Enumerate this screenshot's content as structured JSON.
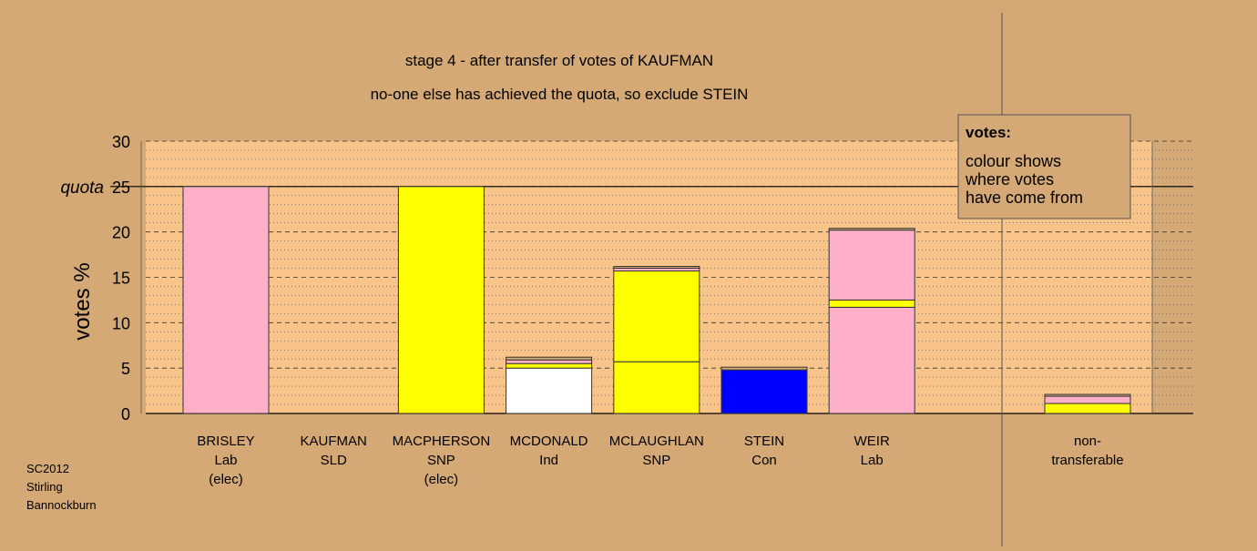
{
  "chart_data": {
    "type": "bar",
    "title": "stage 4 - after transfer of votes of KAUFMAN",
    "subtitle": "no-one else has achieved the quota, so exclude STEIN",
    "ylabel": "votes %",
    "ylim": [
      0,
      30
    ],
    "yticks": [
      "0",
      "5",
      "10",
      "15",
      "20",
      "25",
      "30"
    ],
    "quota_label": "quota",
    "quota_value": 25,
    "grid": true,
    "colors": {
      "background": "#d4a976",
      "plot_area": "#f9c48a",
      "Lab": "#ffb0c8",
      "SNP": "#ffff00",
      "Con": "#0000ff",
      "Ind": "#ffffff",
      "SLD": "#d4a976"
    },
    "categories": [
      {
        "lines": [
          "BRISLEY",
          "Lab",
          "(elec)"
        ],
        "segments": [
          {
            "party": "Lab",
            "value": 25.0
          }
        ]
      },
      {
        "lines": [
          "KAUFMAN",
          "SLD"
        ],
        "segments": []
      },
      {
        "lines": [
          "MACPHERSON",
          "SNP",
          "(elec)"
        ],
        "segments": [
          {
            "party": "SNP",
            "value": 25.0
          }
        ]
      },
      {
        "lines": [
          "MCDONALD",
          "Ind"
        ],
        "segments": [
          {
            "party": "Ind",
            "value": 5.0
          },
          {
            "party": "SNP",
            "value": 0.5
          },
          {
            "party": "Lab",
            "value": 0.4
          },
          {
            "party": "SLD",
            "value": 0.3
          }
        ]
      },
      {
        "lines": [
          "MCLAUGHLAN",
          "SNP"
        ],
        "segments": [
          {
            "party": "SNP",
            "value": 5.7
          },
          {
            "party": "SNP",
            "value": 10.0
          },
          {
            "party": "Lab",
            "value": 0.3
          },
          {
            "party": "SLD",
            "value": 0.2
          }
        ]
      },
      {
        "lines": [
          "STEIN",
          "Con"
        ],
        "segments": [
          {
            "party": "Con",
            "value": 4.8
          },
          {
            "party": "SLD",
            "value": 0.3
          }
        ]
      },
      {
        "lines": [
          "WEIR",
          "Lab"
        ],
        "segments": [
          {
            "party": "Lab",
            "value": 11.7
          },
          {
            "party": "SNP",
            "value": 0.8
          },
          {
            "party": "Lab",
            "value": 7.7
          },
          {
            "party": "SLD",
            "value": 0.2
          }
        ]
      },
      {
        "lines": [
          "non-",
          "transferable"
        ],
        "segments": [
          {
            "party": "SNP",
            "value": 1.1
          },
          {
            "party": "Lab",
            "value": 0.8
          },
          {
            "party": "SLD",
            "value": 0.2
          }
        ]
      }
    ]
  },
  "legend": {
    "heading": "votes:",
    "lines": [
      "colour shows",
      "where votes",
      "have come from"
    ]
  },
  "footer": [
    "SC2012",
    "Stirling",
    "Bannockburn"
  ]
}
